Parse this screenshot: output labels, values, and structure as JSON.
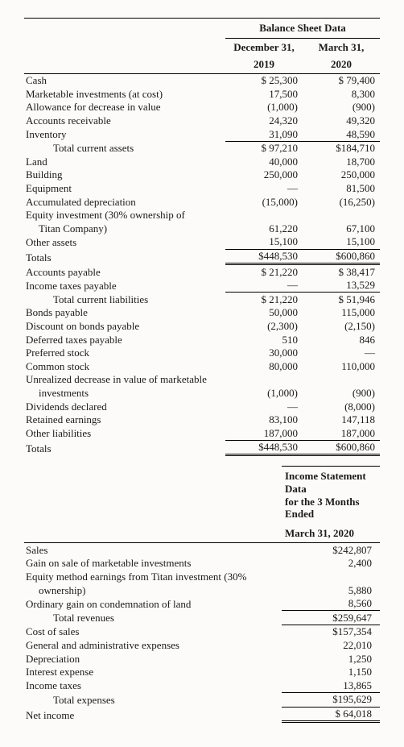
{
  "balance_sheet": {
    "header": "Balance Sheet Data",
    "col1_l1": "December 31,",
    "col1_l2": "2019",
    "col2_l1": "March 31,",
    "col2_l2": "2020",
    "rows": [
      {
        "label": "Cash",
        "indent": 0,
        "v1": "$ 25,300",
        "v2": "$ 79,400"
      },
      {
        "label": "Marketable investments (at cost)",
        "indent": 0,
        "v1": "17,500",
        "v2": "8,300"
      },
      {
        "label": "Allowance for decrease in value",
        "indent": 0,
        "v1": "(1,000)",
        "v2": "(900)"
      },
      {
        "label": "Accounts receivable",
        "indent": 0,
        "v1": "24,320",
        "v2": "49,320"
      },
      {
        "label": "Inventory",
        "indent": 0,
        "v1": "31,090",
        "v2": "48,590",
        "v1_ul_bot": true,
        "v2_ul_bot": true
      },
      {
        "label": "Total current assets",
        "indent": 2,
        "v1": "$ 97,210",
        "v2": "$184,710"
      },
      {
        "label": "Land",
        "indent": 0,
        "v1": "40,000",
        "v2": "18,700"
      },
      {
        "label": "Building",
        "indent": 0,
        "v1": "250,000",
        "v2": "250,000"
      },
      {
        "label": "Equipment",
        "indent": 0,
        "v1": "—",
        "v2": "81,500"
      },
      {
        "label": "Accumulated depreciation",
        "indent": 0,
        "v1": "(15,000)",
        "v2": "(16,250)"
      },
      {
        "label": "Equity investment (30% ownership of",
        "indent": 0,
        "v1": "",
        "v2": ""
      },
      {
        "label": "Titan Company)",
        "indent": 1,
        "v1": "61,220",
        "v2": "67,100"
      },
      {
        "label": "Other assets",
        "indent": 0,
        "v1": "15,100",
        "v2": "15,100",
        "v1_ul_bot": true,
        "v2_ul_bot": true
      },
      {
        "label": "Totals",
        "indent": 0,
        "v1": "$448,530",
        "v2": "$600,860",
        "v1_dbl": true,
        "v2_dbl": true
      },
      {
        "label": "Accounts payable",
        "indent": 0,
        "v1": "$ 21,220",
        "v2": "$ 38,417"
      },
      {
        "label": "Income taxes payable",
        "indent": 0,
        "v1": "—",
        "v2": "13,529",
        "v1_ul_bot": true,
        "v2_ul_bot": true
      },
      {
        "label": "Total current liabilities",
        "indent": 2,
        "v1": "$ 21,220",
        "v2": "$ 51,946"
      },
      {
        "label": "Bonds payable",
        "indent": 0,
        "v1": "50,000",
        "v2": "115,000"
      },
      {
        "label": "Discount on bonds payable",
        "indent": 0,
        "v1": "(2,300)",
        "v2": "(2,150)"
      },
      {
        "label": "Deferred taxes payable",
        "indent": 0,
        "v1": "510",
        "v2": "846"
      },
      {
        "label": "Preferred stock",
        "indent": 0,
        "v1": "30,000",
        "v2": "—"
      },
      {
        "label": "Common stock",
        "indent": 0,
        "v1": "80,000",
        "v2": "110,000"
      },
      {
        "label": "Unrealized decrease in value of marketable",
        "indent": 0,
        "v1": "",
        "v2": ""
      },
      {
        "label": "investments",
        "indent": 1,
        "v1": "(1,000)",
        "v2": "(900)"
      },
      {
        "label": "Dividends declared",
        "indent": 0,
        "v1": "—",
        "v2": "(8,000)"
      },
      {
        "label": "Retained earnings",
        "indent": 0,
        "v1": "83,100",
        "v2": "147,118"
      },
      {
        "label": "Other liabilities",
        "indent": 0,
        "v1": "187,000",
        "v2": "187,000",
        "v1_ul_bot": true,
        "v2_ul_bot": true
      },
      {
        "label": "Totals",
        "indent": 0,
        "v1": "$448,530",
        "v2": "$600,860",
        "v1_dbl": true,
        "v2_dbl": true
      }
    ]
  },
  "income_statement": {
    "header_l1": "Income Statement Data",
    "header_l2": "for the 3 Months Ended",
    "header_l3": "March 31, 2020",
    "rows": [
      {
        "label": "Sales",
        "indent": 0,
        "v": "$242,807"
      },
      {
        "label": "Gain on sale of marketable investments",
        "indent": 0,
        "v": "2,400"
      },
      {
        "label": "Equity method earnings from Titan investment (30%",
        "indent": 0,
        "v": ""
      },
      {
        "label": "ownership)",
        "indent": 1,
        "v": "5,880"
      },
      {
        "label": "Ordinary gain on condemnation of land",
        "indent": 0,
        "v": "8,560",
        "ul_bot": true
      },
      {
        "label": "Total revenues",
        "indent": 2,
        "v": "$259,647",
        "ul_bot": true
      },
      {
        "label": "Cost of sales",
        "indent": 0,
        "v": "$157,354"
      },
      {
        "label": "General and administrative expenses",
        "indent": 0,
        "v": "22,010"
      },
      {
        "label": "Depreciation",
        "indent": 0,
        "v": "1,250"
      },
      {
        "label": "Interest expense",
        "indent": 0,
        "v": "1,150"
      },
      {
        "label": "Income taxes",
        "indent": 0,
        "v": "13,865",
        "ul_bot": true
      },
      {
        "label": "Total expenses",
        "indent": 2,
        "v": "$195,629",
        "ul_bot": true
      },
      {
        "label": "Net income",
        "indent": 0,
        "v": "$ 64,018",
        "dbl": true
      }
    ]
  }
}
